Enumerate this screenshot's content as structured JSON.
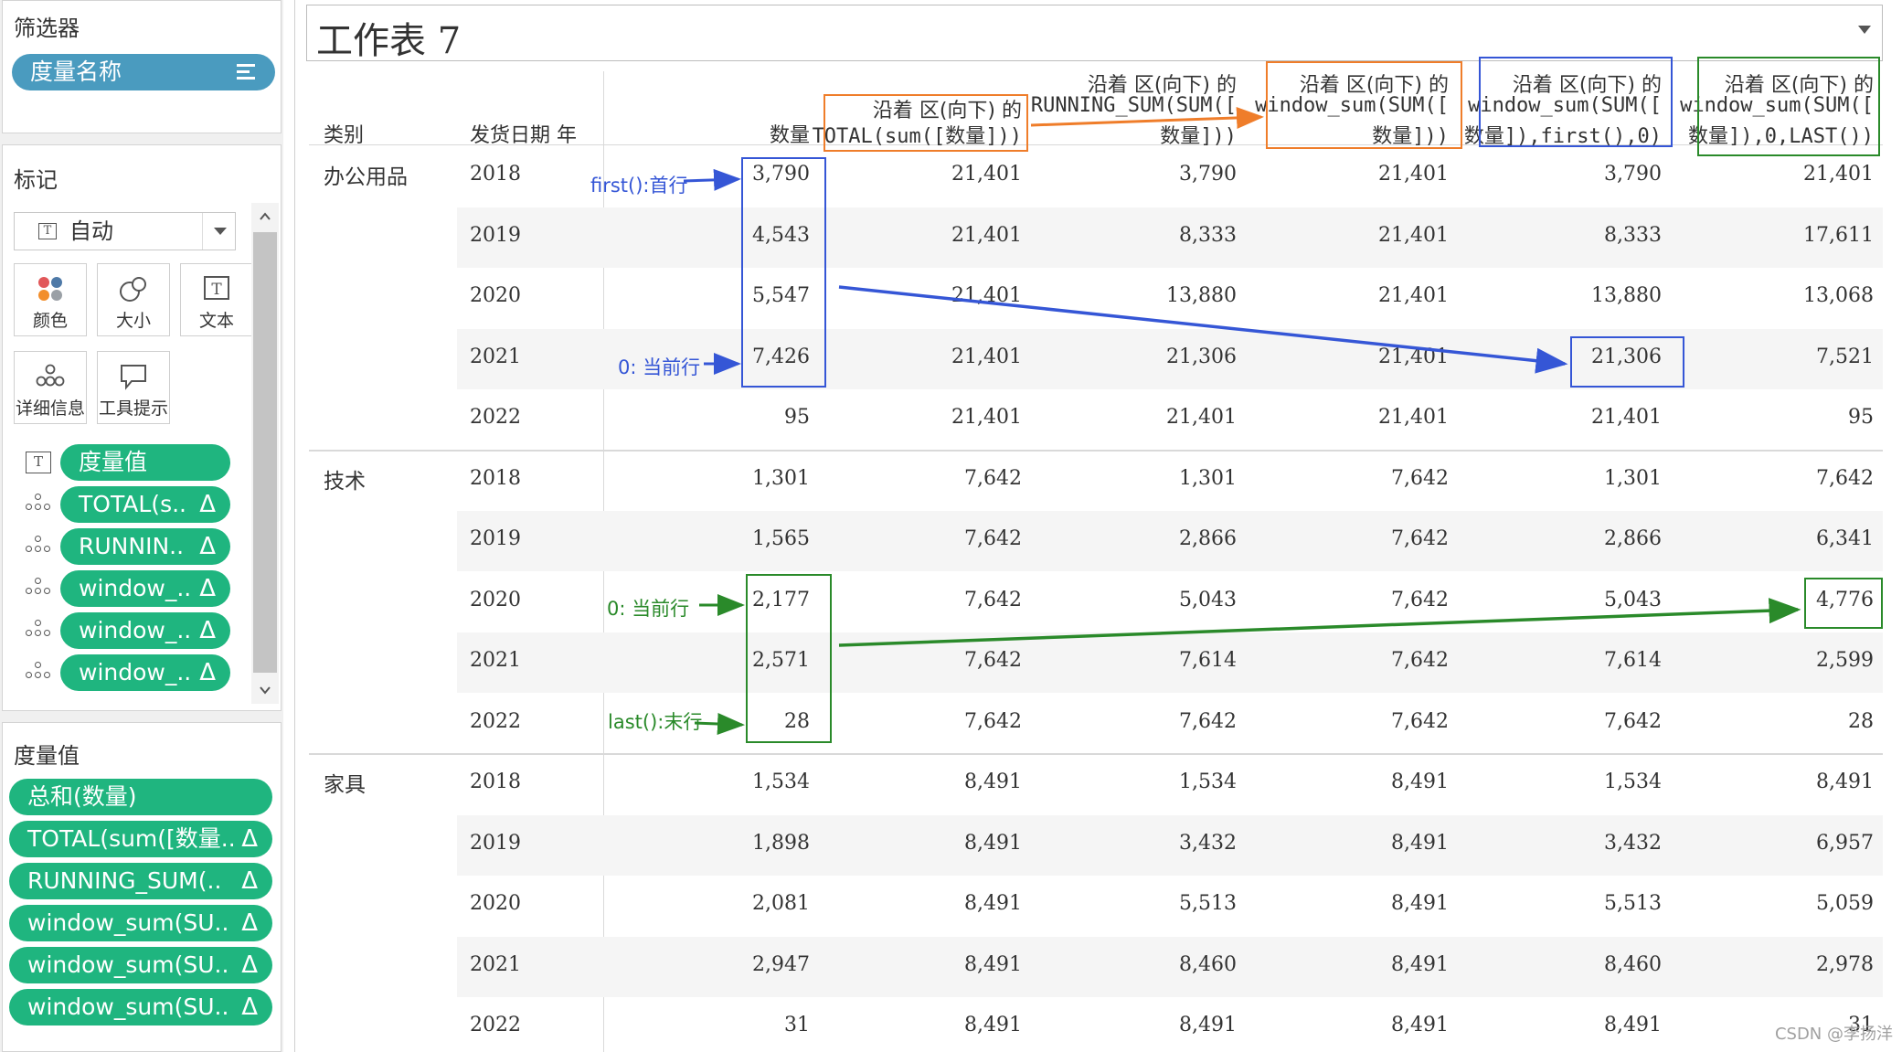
{
  "filters": {
    "title": "筛选器",
    "pill": "度量名称"
  },
  "marks": {
    "title": "标记",
    "type_dropdown": "自动",
    "buttons": [
      {
        "label": "颜色",
        "icon": "color-dots-icon"
      },
      {
        "label": "大小",
        "icon": "size-icon"
      },
      {
        "label": "文本",
        "icon": "text-icon"
      },
      {
        "label": "详细信息",
        "icon": "detail-icon"
      },
      {
        "label": "工具提示",
        "icon": "tooltip-icon"
      }
    ],
    "fields": [
      {
        "label": "度量值",
        "icon": "text-icon"
      },
      {
        "label": "TOTAL(s..",
        "icon": "detail-icon"
      },
      {
        "label": "RUNNIN..",
        "icon": "detail-icon"
      },
      {
        "label": "window_..",
        "icon": "detail-icon"
      },
      {
        "label": "window_..",
        "icon": "detail-icon"
      },
      {
        "label": "window_..",
        "icon": "detail-icon"
      }
    ],
    "delta": "Δ"
  },
  "measure_values": {
    "title": "度量值",
    "items": [
      {
        "label": "总和(数量)",
        "calc": false
      },
      {
        "label": "TOTAL(sum([数量..",
        "calc": true
      },
      {
        "label": "RUNNING_SUM(..",
        "calc": true
      },
      {
        "label": "window_sum(SU..",
        "calc": true
      },
      {
        "label": "window_sum(SU..",
        "calc": true
      },
      {
        "label": "window_sum(SU..",
        "calc": true
      }
    ]
  },
  "sheet": {
    "title": "工作表 7",
    "row_headers": {
      "category": "类别",
      "date": "发货日期 年"
    },
    "columns": [
      {
        "lines": [
          "数量"
        ]
      },
      {
        "lines": [
          "沿着 区(向下) 的",
          "TOTAL(sum([数量]))"
        ]
      },
      {
        "lines": [
          "沿着 区(向下) 的",
          "RUNNING_SUM(SUM([",
          "数量]))"
        ]
      },
      {
        "lines": [
          "沿着 区(向下) 的",
          "window_sum(SUM([",
          "数量]))"
        ]
      },
      {
        "lines": [
          "沿着 区(向下) 的",
          "window_sum(SUM([",
          "数量]),first(),0)"
        ]
      },
      {
        "lines": [
          "沿着 区(向下) 的",
          "window_sum(SUM([",
          "数量]),0,LAST())"
        ]
      }
    ],
    "groups": [
      {
        "category": "办公用品",
        "rows": [
          {
            "year": "2018",
            "v": [
              "3,790",
              "21,401",
              "3,790",
              "21,401",
              "3,790",
              "21,401"
            ]
          },
          {
            "year": "2019",
            "v": [
              "4,543",
              "21,401",
              "8,333",
              "21,401",
              "8,333",
              "17,611"
            ]
          },
          {
            "year": "2020",
            "v": [
              "5,547",
              "21,401",
              "13,880",
              "21,401",
              "13,880",
              "13,068"
            ]
          },
          {
            "year": "2021",
            "v": [
              "7,426",
              "21,401",
              "21,306",
              "21,401",
              "21,306",
              "7,521"
            ]
          },
          {
            "year": "2022",
            "v": [
              "95",
              "21,401",
              "21,401",
              "21,401",
              "21,401",
              "95"
            ]
          }
        ]
      },
      {
        "category": "技术",
        "rows": [
          {
            "year": "2018",
            "v": [
              "1,301",
              "7,642",
              "1,301",
              "7,642",
              "1,301",
              "7,642"
            ]
          },
          {
            "year": "2019",
            "v": [
              "1,565",
              "7,642",
              "2,866",
              "7,642",
              "2,866",
              "6,341"
            ]
          },
          {
            "year": "2020",
            "v": [
              "2,177",
              "7,642",
              "5,043",
              "7,642",
              "5,043",
              "4,776"
            ]
          },
          {
            "year": "2021",
            "v": [
              "2,571",
              "7,642",
              "7,614",
              "7,642",
              "7,614",
              "2,599"
            ]
          },
          {
            "year": "2022",
            "v": [
              "28",
              "7,642",
              "7,642",
              "7,642",
              "7,642",
              "28"
            ]
          }
        ]
      },
      {
        "category": "家具",
        "rows": [
          {
            "year": "2018",
            "v": [
              "1,534",
              "8,491",
              "1,534",
              "8,491",
              "1,534",
              "8,491"
            ]
          },
          {
            "year": "2019",
            "v": [
              "1,898",
              "8,491",
              "3,432",
              "8,491",
              "3,432",
              "6,957"
            ]
          },
          {
            "year": "2020",
            "v": [
              "2,081",
              "8,491",
              "5,513",
              "8,491",
              "5,513",
              "5,059"
            ]
          },
          {
            "year": "2021",
            "v": [
              "2,947",
              "8,491",
              "8,460",
              "8,491",
              "8,460",
              "2,978"
            ]
          },
          {
            "year": "2022",
            "v": [
              "31",
              "8,491",
              "8,491",
              "8,491",
              "8,491",
              "31"
            ]
          }
        ]
      }
    ]
  },
  "annotations": {
    "first_label": "first():首行",
    "current_label_blue": "0: 当前行",
    "current_label_green": "0: 当前行",
    "last_label": "last():末行",
    "colors": {
      "orange": "#ef7d2a",
      "blue": "#3556d6",
      "green": "#2a8a2a"
    }
  },
  "watermark": "CSDN @李扬洋"
}
